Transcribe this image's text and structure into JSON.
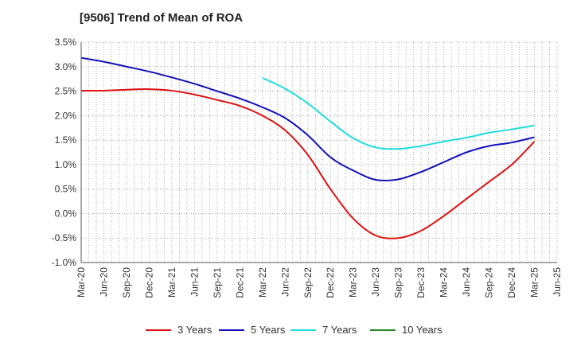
{
  "chart_data": {
    "type": "line",
    "title": "[9506]  Trend of Mean of ROA",
    "xlabel": "",
    "ylabel": "",
    "ylim": [
      -1.0,
      3.5
    ],
    "y_ticks": [
      3.5,
      3.0,
      2.5,
      2.0,
      1.5,
      1.0,
      0.5,
      0.0,
      -0.5,
      -1.0
    ],
    "y_tick_labels": [
      "3.5%",
      "3.0%",
      "2.5%",
      "2.0%",
      "1.5%",
      "1.0%",
      "0.5%",
      "0.0%",
      "-0.5%",
      "-1.0%"
    ],
    "x_tick_labels": [
      "Mar-20",
      "Jun-20",
      "Sep-20",
      "Dec-20",
      "Mar-21",
      "Jun-21",
      "Sep-21",
      "Dec-21",
      "Mar-22",
      "Jun-22",
      "Sep-22",
      "Dec-22",
      "Mar-23",
      "Jun-23",
      "Sep-23",
      "Dec-23",
      "Mar-24",
      "Jun-24",
      "Sep-24",
      "Dec-24",
      "Mar-25",
      "Jun-25"
    ],
    "grid": true,
    "legend_position": "bottom",
    "series": [
      {
        "name": "3 Years",
        "color": "#dd1111",
        "values": [
          2.51,
          2.51,
          2.53,
          2.54,
          2.51,
          2.43,
          2.32,
          2.2,
          2.0,
          1.7,
          1.2,
          0.5,
          -0.1,
          -0.45,
          -0.5,
          -0.35,
          -0.05,
          0.3,
          0.65,
          1.0,
          1.47,
          null
        ]
      },
      {
        "name": "5 Years",
        "color": "#1111bb",
        "values": [
          3.18,
          3.1,
          3.0,
          2.9,
          2.78,
          2.65,
          2.5,
          2.35,
          2.17,
          1.95,
          1.6,
          1.15,
          0.88,
          0.69,
          0.7,
          0.85,
          1.05,
          1.25,
          1.38,
          1.45,
          1.56,
          null
        ]
      },
      {
        "name": "7 Years",
        "color": "#22dddd",
        "values": [
          null,
          null,
          null,
          null,
          null,
          null,
          null,
          null,
          2.77,
          2.55,
          2.25,
          1.88,
          1.54,
          1.35,
          1.32,
          1.38,
          1.47,
          1.55,
          1.65,
          1.72,
          1.8,
          null
        ]
      },
      {
        "name": "10 Years",
        "color": "#228822",
        "values": [
          null,
          null,
          null,
          null,
          null,
          null,
          null,
          null,
          null,
          null,
          null,
          null,
          null,
          null,
          null,
          null,
          null,
          null,
          null,
          null,
          null,
          null
        ]
      }
    ]
  }
}
